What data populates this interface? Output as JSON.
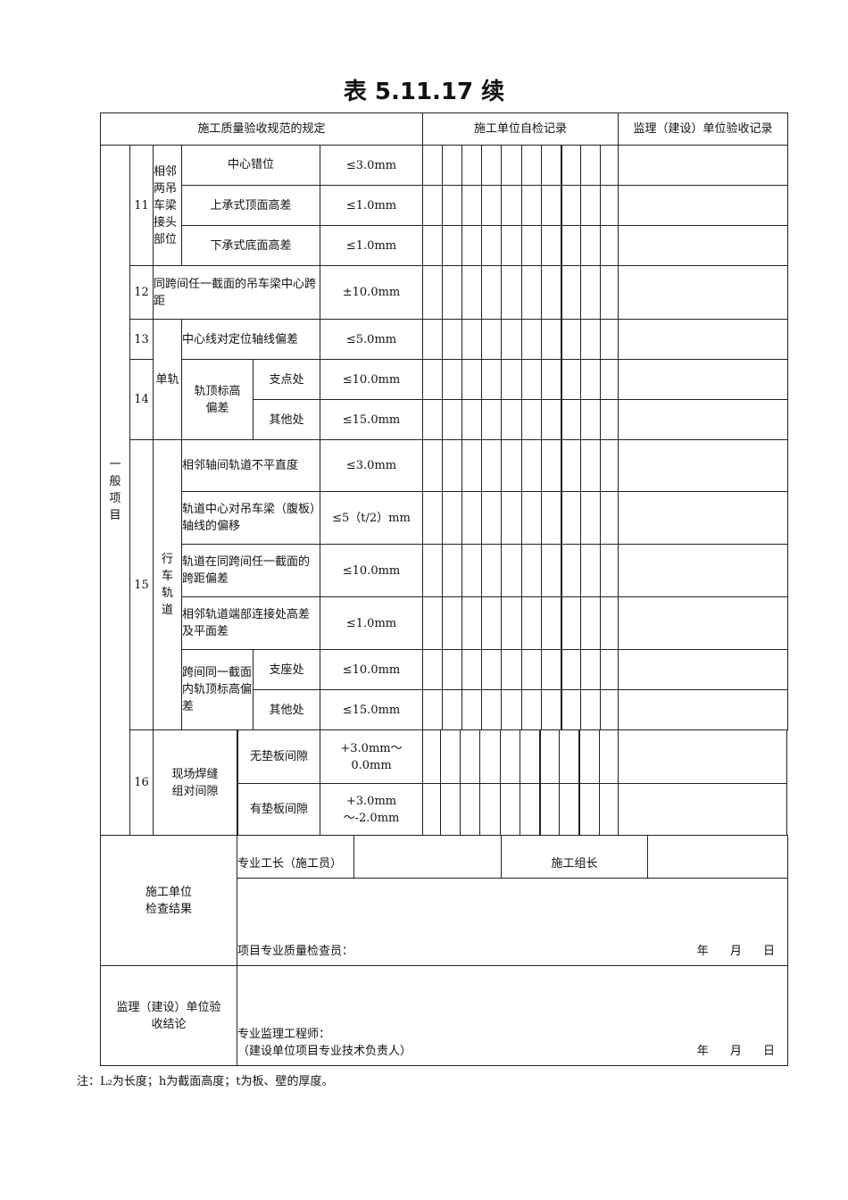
{
  "title": "表 5.11.17 续",
  "header": {
    "spec": "施工质量验收规范的规定",
    "self_check": "施工单位自检记录",
    "supervision": "监理（建设）单位验收记录"
  },
  "category": "一般项目",
  "items": {
    "i11": {
      "no": "11",
      "group": "相邻两吊车梁接头部位",
      "rows": [
        {
          "name": "中心错位",
          "value": "≤3.0mm"
        },
        {
          "name": "上承式顶面高差",
          "value": "≤1.0mm"
        },
        {
          "name": "下承式底面高差",
          "value": "≤1.0mm"
        }
      ]
    },
    "i12": {
      "no": "12",
      "name": "同跨间任一截面的吊车梁中心跨距",
      "value": "±10.0mm"
    },
    "mono": "单轨",
    "i13": {
      "no": "13",
      "name": "中心线对定位轴线偏差",
      "value": "≤5.0mm"
    },
    "i14": {
      "no": "14",
      "name": "轨顶标高偏差",
      "rows": [
        {
          "name": "支点处",
          "value": "≤10.0mm"
        },
        {
          "name": "其他处",
          "value": "≤15.0mm"
        }
      ]
    },
    "i15": {
      "no": "15",
      "group": "行车轨道",
      "rows": [
        {
          "name": "相邻轴间轨道不平直度",
          "value": "≤3.0mm"
        },
        {
          "name": "轨道中心对吊车梁（腹板）轴线的偏移",
          "value": "≤5（t/2）mm"
        },
        {
          "name": "轨道在同跨间任一截面的跨距偏差",
          "value": "≤10.0mm"
        },
        {
          "name": "相邻轨道端部连接处高差及平面差",
          "value": "≤1.0mm"
        }
      ],
      "sub": {
        "name": "跨间同一截面内轨顶标高偏差",
        "rows": [
          {
            "name": "支座处",
            "value": "≤10.0mm"
          },
          {
            "name": "其他处",
            "value": "≤15.0mm"
          }
        ]
      }
    },
    "i16": {
      "no": "16",
      "name": "现场焊缝组对间隙",
      "rows": [
        {
          "name": "无垫板间隙",
          "value": "+3.0mm～0.0mm"
        },
        {
          "name": "有垫板间隙",
          "value": "+3.0mm～-2.0mm"
        }
      ]
    }
  },
  "footer": {
    "construction": {
      "label": "施工单位检查结果",
      "foreman": "专业工长（施工员）",
      "leader": "施工组长",
      "inspector": "项目专业质量检查员：",
      "date": "年 月 日"
    },
    "supervision": {
      "label": "监理（建设）单位验收结论",
      "engineer": "专业监理工程师：",
      "owner": "（建设单位项目专业技术负责人）",
      "date": "年 月 日"
    }
  },
  "note": "注：L₂为长度；h为截面高度；t为板、壁的厚度。"
}
